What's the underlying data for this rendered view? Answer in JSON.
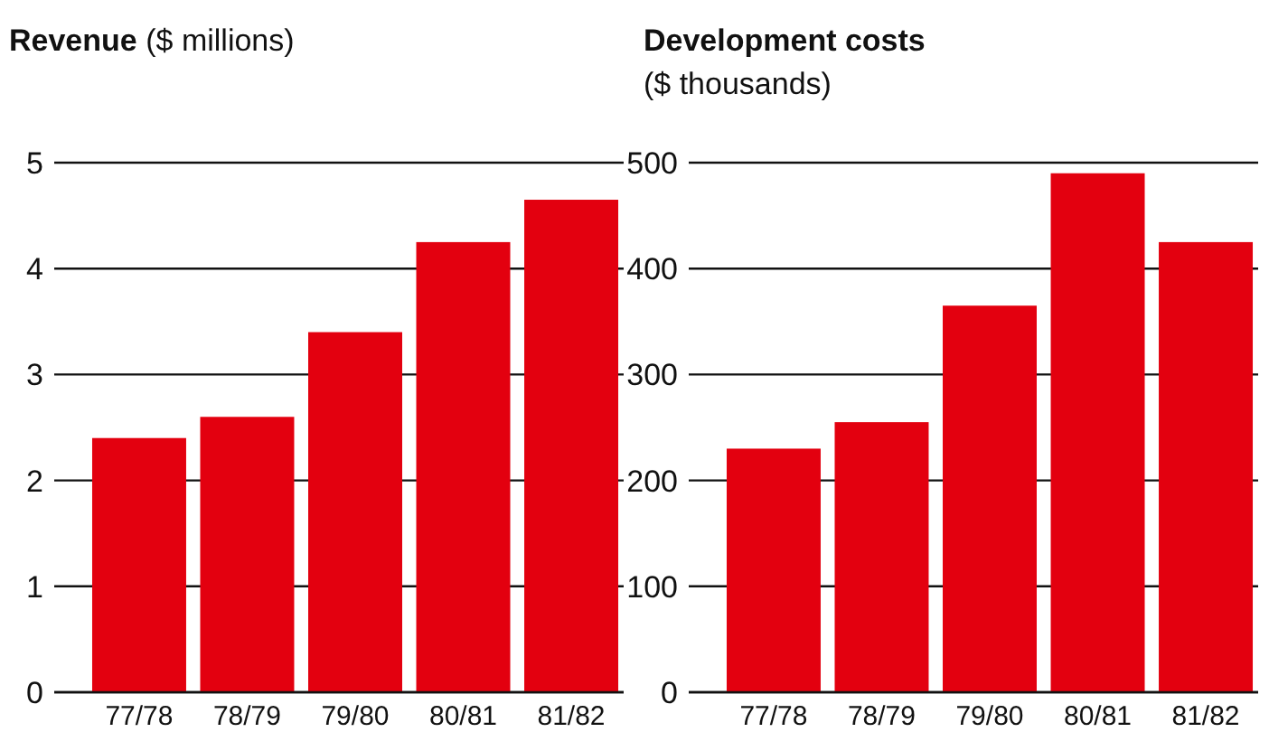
{
  "chart_data": [
    {
      "type": "bar",
      "title": "Revenue",
      "subtitle": "($ millions)",
      "categories": [
        "77/78",
        "78/79",
        "79/80",
        "80/81",
        "81/82"
      ],
      "values": [
        2.4,
        2.6,
        3.4,
        4.25,
        4.65
      ],
      "color": "#e3000f",
      "ylim": [
        0,
        5
      ],
      "yticks": [
        0,
        1,
        2,
        3,
        4,
        5
      ],
      "grid": "y"
    },
    {
      "type": "bar",
      "title": "Development costs",
      "subtitle": "($ thousands)",
      "categories": [
        "77/78",
        "78/79",
        "79/80",
        "80/81",
        "81/82"
      ],
      "values": [
        230,
        255,
        365,
        490,
        425
      ],
      "color": "#e3000f",
      "ylim": [
        0,
        500
      ],
      "yticks": [
        0,
        100,
        200,
        300,
        400,
        500
      ],
      "grid": "y"
    }
  ]
}
